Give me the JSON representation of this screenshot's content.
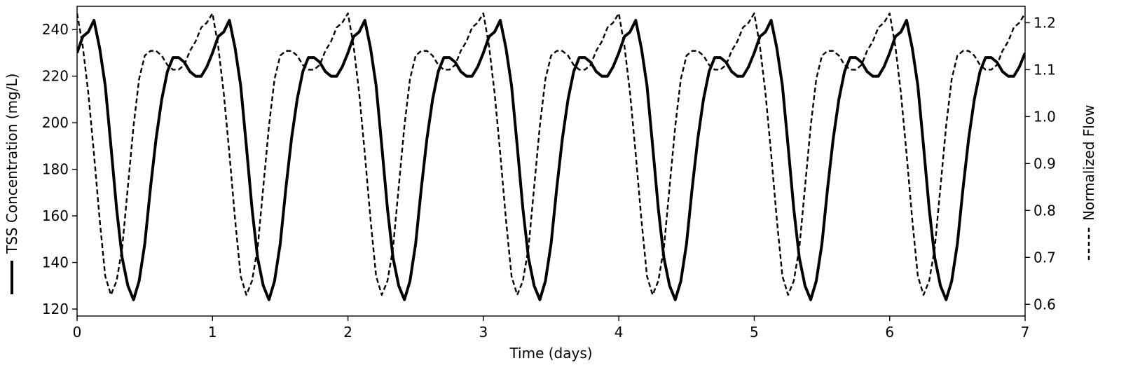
{
  "chart_data": {
    "type": "line",
    "xlabel": "Time (days)",
    "ylabel_left": "TSS Concentration (mg/L)",
    "ylabel_right": "Normalized Flow",
    "xlim": [
      0,
      7
    ],
    "ylim_left": [
      117,
      250
    ],
    "ylim_right": [
      0.575,
      1.235
    ],
    "xticks": [
      "0",
      "1",
      "2",
      "3",
      "4",
      "5",
      "6",
      "7"
    ],
    "yticks_left": [
      "120",
      "140",
      "160",
      "180",
      "200",
      "220",
      "240"
    ],
    "yticks_right": [
      "0.6",
      "0.7",
      "0.8",
      "0.9",
      "1.0",
      "1.1",
      "1.2"
    ],
    "grid": false,
    "colors": {
      "line": "#000000"
    },
    "series": [
      {
        "axis": "left",
        "style": "solid",
        "period_days": 1,
        "cycle_x": [
          0,
          0.042,
          0.083,
          0.125,
          0.167,
          0.208,
          0.25,
          0.292,
          0.333,
          0.375,
          0.417,
          0.458,
          0.5,
          0.542,
          0.583,
          0.625,
          0.667,
          0.708,
          0.75,
          0.792,
          0.833,
          0.875,
          0.917,
          0.958,
          1.0
        ],
        "cycle_y": [
          230,
          237,
          239,
          244,
          232,
          216,
          190,
          163,
          142,
          130,
          124,
          132,
          148,
          172,
          193,
          210,
          222,
          228,
          228,
          226,
          222,
          220,
          220,
          224,
          230
        ]
      },
      {
        "axis": "right",
        "style": "dashed",
        "period_days": 1,
        "cycle_x": [
          0,
          0.042,
          0.083,
          0.125,
          0.167,
          0.208,
          0.25,
          0.292,
          0.333,
          0.375,
          0.417,
          0.458,
          0.5,
          0.542,
          0.583,
          0.625,
          0.667,
          0.708,
          0.75,
          0.792,
          0.833,
          0.875,
          0.917,
          0.958,
          1.0
        ],
        "cycle_y": [
          1.22,
          1.15,
          1.05,
          0.92,
          0.78,
          0.66,
          0.62,
          0.65,
          0.72,
          0.85,
          0.98,
          1.08,
          1.13,
          1.14,
          1.14,
          1.13,
          1.11,
          1.1,
          1.1,
          1.11,
          1.14,
          1.16,
          1.19,
          1.2,
          1.22
        ]
      }
    ]
  }
}
